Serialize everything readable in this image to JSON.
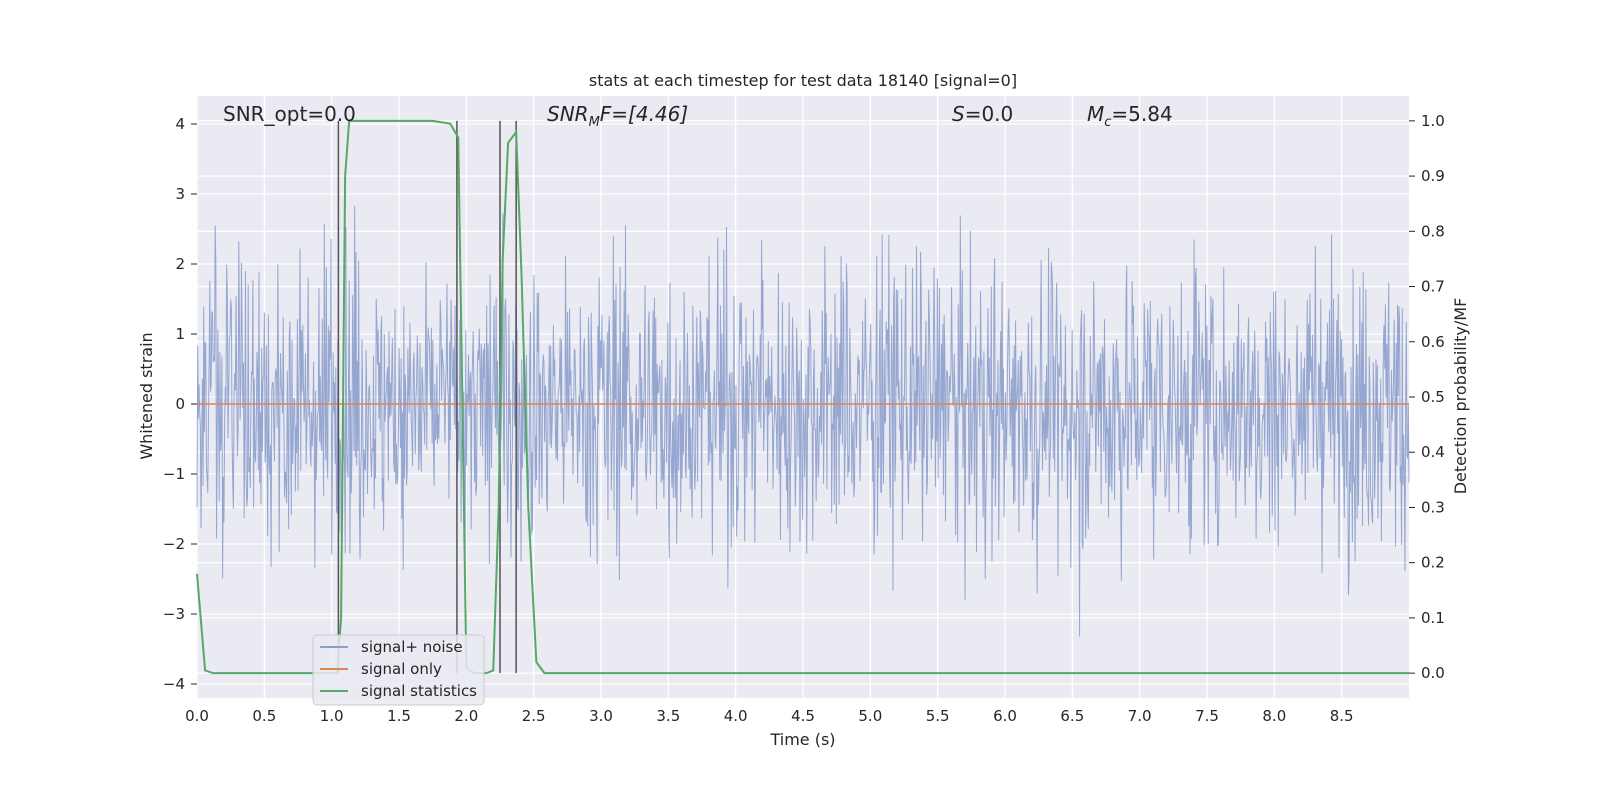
{
  "chart_data": {
    "type": "line",
    "title": "stats at each timestep for test data 18140 [signal=0]",
    "xlabel": "Time (s)",
    "ylabel": "Whitened strain",
    "ylabel_right": "Detection probability/MF",
    "xlim": [
      0.0,
      9.0
    ],
    "ylim": [
      -4.2,
      4.4
    ],
    "ylim_right": [
      -0.045,
      1.045
    ],
    "x_ticks": [
      "0.0",
      "0.5",
      "1.0",
      "1.5",
      "2.0",
      "2.5",
      "3.0",
      "3.5",
      "4.0",
      "4.5",
      "5.0",
      "5.5",
      "6.0",
      "6.5",
      "7.0",
      "7.5",
      "8.0",
      "8.5"
    ],
    "y_ticks": [
      "−4",
      "−3",
      "−2",
      "−1",
      "0",
      "1",
      "2",
      "3",
      "4"
    ],
    "y_ticks_right": [
      "0.0",
      "0.1",
      "0.2",
      "0.3",
      "0.4",
      "0.5",
      "0.6",
      "0.7",
      "0.8",
      "0.9",
      "1.0"
    ],
    "grid": true,
    "annotations": {
      "snr_opt": "SNR_opt=0.0",
      "snr_mf_main": "SNR",
      "snr_mf_sub": "M",
      "snr_mf_rest": "F=[4.46]",
      "s_main": "S",
      "s_rest": "=0.0",
      "mc_main": "M",
      "mc_sub": "c",
      "mc_rest": "=5.84"
    },
    "series": [
      {
        "name": "signal+ noise",
        "color": "#8c9fcc",
        "description_values": "whitened strain noise, approx. within [-3.5, 4.0]"
      },
      {
        "name": "signal only",
        "color": "#dd8452",
        "values_constant": 0.0
      },
      {
        "name": "signal statistics",
        "color": "#55a868",
        "x": [
          0.0,
          0.06,
          0.12,
          0.2,
          0.3,
          0.4,
          0.5,
          0.6,
          0.7,
          0.8,
          0.9,
          1.0,
          1.04,
          1.07,
          1.1,
          1.13,
          1.2,
          1.4,
          1.6,
          1.75,
          1.88,
          1.94,
          1.97,
          2.0,
          2.06,
          2.15,
          2.2,
          2.24,
          2.27,
          2.31,
          2.37,
          2.41,
          2.46,
          2.52,
          2.58,
          2.7,
          3.0,
          4.0,
          5.0,
          6.0,
          7.0,
          8.0,
          9.0
        ],
        "values": [
          0.18,
          0.005,
          0.0,
          0.0,
          0.0,
          0.0,
          0.0,
          0.0,
          0.0,
          0.0,
          0.0,
          0.0,
          0.0,
          0.1,
          0.9,
          1.0,
          1.0,
          1.0,
          1.0,
          1.0,
          0.995,
          0.97,
          0.5,
          0.01,
          0.0,
          0.0,
          0.005,
          0.3,
          0.75,
          0.96,
          0.98,
          0.72,
          0.3,
          0.02,
          0.0,
          0.0,
          0.0,
          0.0,
          0.0,
          0.0,
          0.0,
          0.0,
          0.0
        ]
      }
    ],
    "vlines_x": [
      1.05,
      1.93,
      2.25,
      2.37
    ],
    "legend": {
      "position": "lower-left",
      "entries": [
        "signal+ noise",
        "signal only",
        "signal statistics"
      ]
    }
  }
}
